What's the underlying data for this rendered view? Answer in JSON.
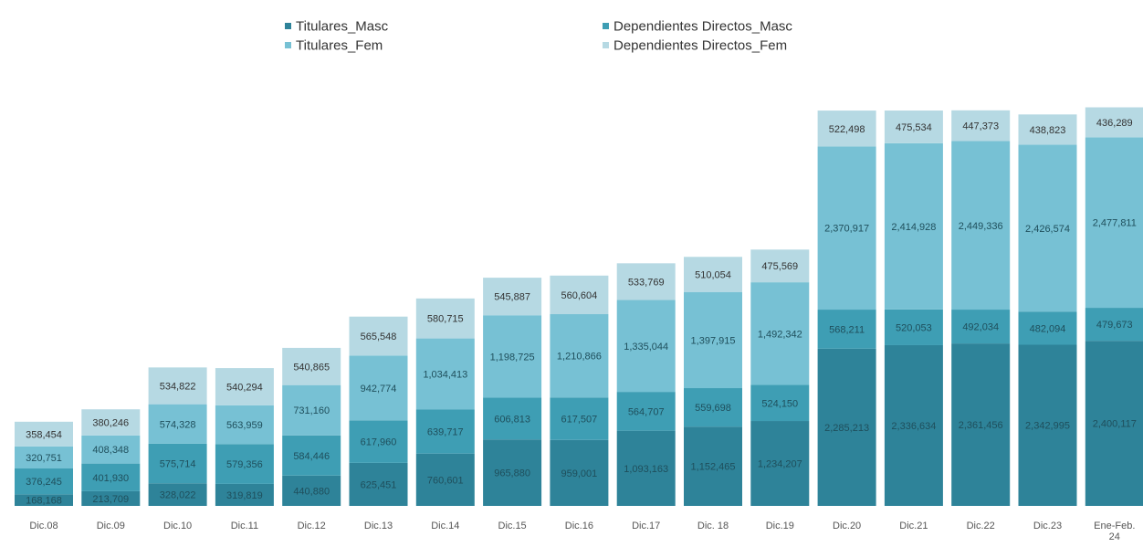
{
  "chart_data": {
    "type": "bar",
    "stacked": true,
    "title": "",
    "xlabel": "",
    "ylabel": "",
    "ylim": [
      0,
      6000000
    ],
    "grid": false,
    "legend_position": "top",
    "categories": [
      "Dic.08",
      "Dic.09",
      "Dic.10",
      "Dic.11",
      "Dic.12",
      "Dic.13",
      "Dic.14",
      "Dic.15",
      "Dic.16",
      "Dic.17",
      "Dic. 18",
      "Dic.19",
      "Dic.20",
      "Dic.21",
      "Dic.22",
      "Dic.23",
      "Ene-Feb.\n24"
    ],
    "series": [
      {
        "name": "Titulares_Masc",
        "color": "#2e8399",
        "values": [
          168168,
          213709,
          328022,
          319819,
          440880,
          625451,
          760601,
          965880,
          959001,
          1093163,
          1152465,
          1234207,
          2285213,
          2336634,
          2361456,
          2342995,
          2400117
        ],
        "labels": [
          "168,168",
          "213,709",
          "328,022",
          "319,819",
          "440,880",
          "625,451",
          "760,601",
          "965,880",
          "959,001",
          "1,093,163",
          "1,152,465",
          "1,234,207",
          "2,285,213",
          "2,336,634",
          "2,361,456",
          "2,342,995",
          "2,400,117"
        ]
      },
      {
        "name": "Dependientes Directos_Masc",
        "color": "#3e9eb4",
        "values": [
          376245,
          401930,
          575714,
          579356,
          584446,
          617960,
          639717,
          606813,
          617507,
          564707,
          559698,
          524150,
          568211,
          520053,
          492034,
          482094,
          479673
        ],
        "labels": [
          "376,245",
          "401,930",
          "575,714",
          "579,356",
          "584,446",
          "617,960",
          "639,717",
          "606,813",
          "617,507",
          "564,707",
          "559,698",
          "524,150",
          "568,211",
          "520,053",
          "492,034",
          "482,094",
          "479,673"
        ]
      },
      {
        "name": "Titulares_Fem",
        "color": "#77c1d4",
        "values": [
          320751,
          408348,
          574328,
          563959,
          731160,
          942774,
          1034413,
          1198725,
          1210866,
          1335044,
          1397915,
          1492342,
          2370917,
          2414928,
          2449336,
          2426574,
          2477811
        ],
        "labels": [
          "320,751",
          "408,348",
          "574,328",
          "563,959",
          "731,160",
          "942,774",
          "1,034,413",
          "1,198,725",
          "1,210,866",
          "1,335,044",
          "1,397,915",
          "1,492,342",
          "2,370,917",
          "2,414,928",
          "2,449,336",
          "2,426,574",
          "2,477,811"
        ]
      },
      {
        "name": "Dependientes Directos_Fem",
        "color": "#b6d9e3",
        "values": [
          358454,
          380246,
          534822,
          540294,
          540865,
          565548,
          580715,
          545887,
          560604,
          533769,
          510054,
          475569,
          522498,
          475534,
          447373,
          438823,
          436289
        ],
        "labels": [
          "358,454",
          "380,246",
          "534,822",
          "540,294",
          "540,865",
          "565,548",
          "580,715",
          "545,887",
          "560,604",
          "533,769",
          "510,054",
          "475,569",
          "522,498",
          "475,534",
          "447,373",
          "438,823",
          "436,289"
        ]
      }
    ]
  }
}
